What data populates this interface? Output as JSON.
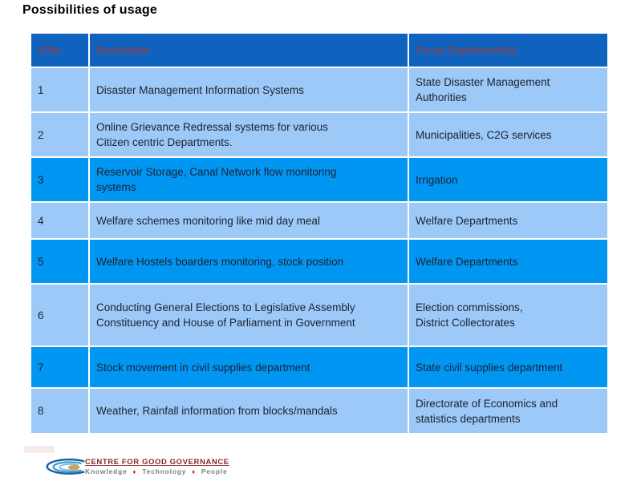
{
  "title": "Possibilities of usage",
  "table": {
    "columns": [
      "SlNo",
      "Description",
      "Focus Department(s)"
    ],
    "rows": [
      {
        "slno": "1",
        "description": "Disaster Management Information Systems",
        "focus": "State Disaster Management\n Authorities",
        "highlight": false
      },
      {
        "slno": "2",
        "description": "Online Grievance Redressal systems for various\nCitizen centric Departments.",
        "focus": "Municipalities, C2G services",
        "highlight": false
      },
      {
        "slno": "3",
        "description": "Reservoir Storage, Canal Network flow monitoring\nsystems",
        "focus": "Irrigation",
        "highlight": true
      },
      {
        "slno": "4",
        "description": "Welfare schemes monitoring like mid day meal",
        "focus": "Welfare Departments",
        "highlight": false
      },
      {
        "slno": "5",
        "description": "Welfare Hostels boarders monitoring, stock position",
        "focus": "Welfare Departments",
        "highlight": true
      },
      {
        "slno": "6",
        "description": "Conducting General Elections to Legislative Assembly\nConstituency and House of Parliament in Government",
        "focus": "Election commissions,\nDistrict Collectorates",
        "highlight": false
      },
      {
        "slno": "7",
        "description": "Stock movement in civil supplies department",
        "focus": "State civil supplies department",
        "highlight": true
      },
      {
        "slno": "8",
        "description": "Weather, Rainfall information from blocks/mandals",
        "focus": "Directorate of Economics and\nstatistics departments",
        "highlight": false
      }
    ]
  },
  "footer": {
    "logo_title": "CENTRE FOR GOOD GOVERNANCE",
    "tagline_words": [
      "Knowledge",
      "Technology",
      "People"
    ]
  },
  "colors": {
    "header_bg": "#0f63be",
    "row_light": "#9cc9f7",
    "row_bright": "#0096f2",
    "header_text": "#9c3a38",
    "body_text": "#1c2233",
    "title_color": "#000000",
    "logo_maroon": "#8b2626",
    "tagline_gray": "#7c7c7c",
    "tagline_bullet": "#cc2222"
  }
}
